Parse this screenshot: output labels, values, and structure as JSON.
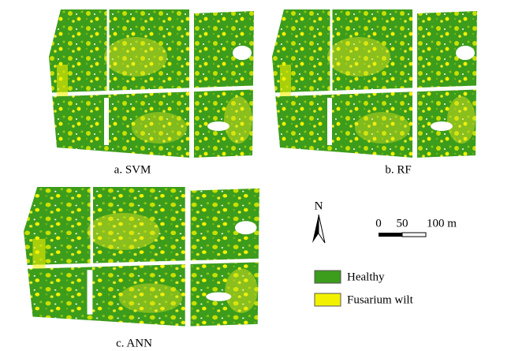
{
  "panels": [
    {
      "caption": "a. SVM"
    },
    {
      "caption": "b. RF"
    },
    {
      "caption": "c. ANN"
    }
  ],
  "north_arrow": {
    "label": "N"
  },
  "scale_bar": {
    "labels": [
      "0",
      "50",
      "100 m"
    ]
  },
  "legend": {
    "items": [
      {
        "label": "Healthy",
        "color": "#3c9c1c"
      },
      {
        "label": "Fusarium wilt",
        "color": "#f2f200"
      }
    ]
  }
}
